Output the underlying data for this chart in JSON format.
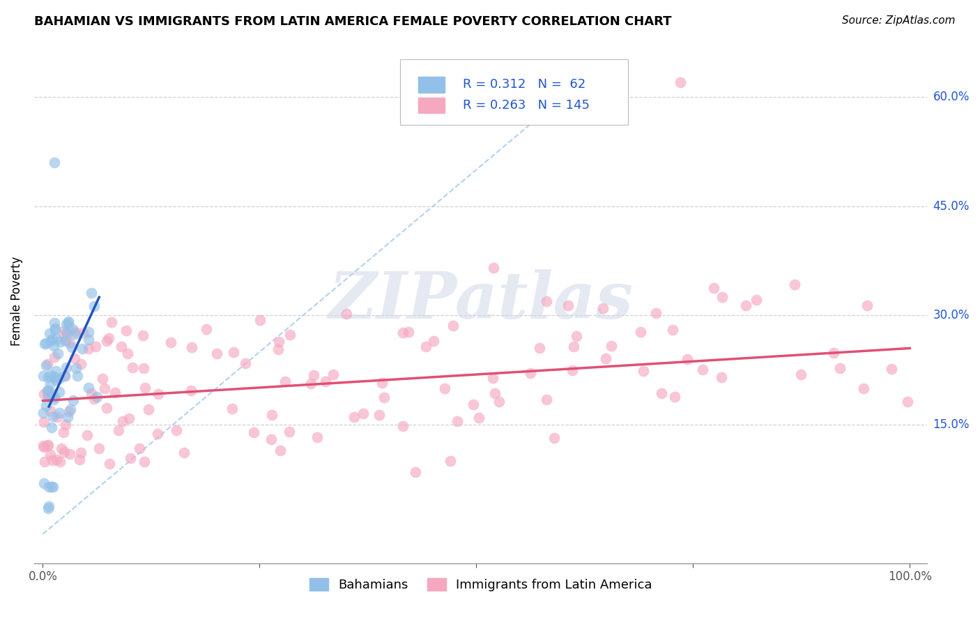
{
  "title": "BAHAMIAN VS IMMIGRANTS FROM LATIN AMERICA FEMALE POVERTY CORRELATION CHART",
  "source": "Source: ZipAtlas.com",
  "ylabel": "Female Poverty",
  "xlim": [
    -0.01,
    1.02
  ],
  "ylim": [
    -0.04,
    0.68
  ],
  "yticks": [
    0.15,
    0.3,
    0.45,
    0.6
  ],
  "ytick_labels": [
    "15.0%",
    "30.0%",
    "45.0%",
    "60.0%"
  ],
  "xticks": [
    0.0,
    0.25,
    0.5,
    0.75,
    1.0
  ],
  "xtick_labels": [
    "0.0%",
    "",
    "",
    "",
    "100.0%"
  ],
  "background_color": "#ffffff",
  "grid_color": "#cccccc",
  "R1": 0.312,
  "N1": 62,
  "R2": 0.263,
  "N2": 145,
  "color_blue": "#92c0e8",
  "color_pink": "#f5a8c0",
  "line_blue": "#2255bb",
  "line_pink": "#e05075",
  "dash_color": "#aaccee",
  "legend_label1": "Bahamians",
  "legend_label2": "Immigrants from Latin America",
  "watermark": "ZIPatlas",
  "title_fontsize": 13,
  "axis_label_fontsize": 12,
  "tick_fontsize": 12,
  "legend_fontsize": 13
}
